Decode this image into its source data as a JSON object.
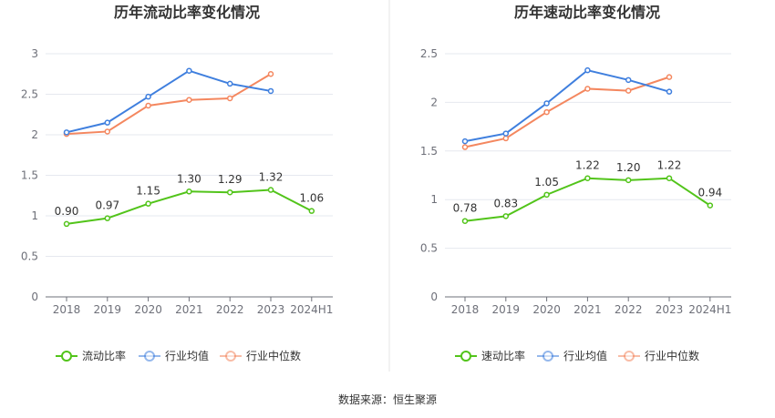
{
  "colors": {
    "green": "#52c41a",
    "blue": "#3f7fde",
    "orange": "#f4875f",
    "grid": "#e6e8ef",
    "axis": "#6e7079",
    "divider": "#e5e5e5"
  },
  "source_text": "数据来源：恒生聚源",
  "chart_data": [
    {
      "type": "line",
      "title": "历年流动比率变化情况",
      "categories": [
        "2018",
        "2019",
        "2020",
        "2021",
        "2022",
        "2023",
        "2024H1"
      ],
      "ylim": [
        0,
        3
      ],
      "yticks": [
        "0",
        "0.5",
        "1",
        "1.5",
        "2",
        "2.5",
        "3"
      ],
      "grid": true,
      "legend_position": "bottom",
      "series": [
        {
          "name": "流动比率",
          "color": "#52c41a",
          "values": [
            0.9,
            0.97,
            1.15,
            1.3,
            1.29,
            1.32,
            1.06
          ],
          "labels": [
            "0.90",
            "0.97",
            "1.15",
            "1.30",
            "1.29",
            "1.32",
            "1.06"
          ]
        },
        {
          "name": "行业均值",
          "color": "#3f7fde",
          "values": [
            2.03,
            2.15,
            2.47,
            2.79,
            2.63,
            2.54,
            null
          ]
        },
        {
          "name": "行业中位数",
          "color": "#f4875f",
          "values": [
            2.01,
            2.04,
            2.36,
            2.43,
            2.45,
            2.75,
            null
          ]
        }
      ]
    },
    {
      "type": "line",
      "title": "历年速动比率变化情况",
      "categories": [
        "2018",
        "2019",
        "2020",
        "2021",
        "2022",
        "2023",
        "2024H1"
      ],
      "ylim": [
        0,
        2.5
      ],
      "yticks": [
        "0",
        "0.5",
        "1",
        "1.5",
        "2",
        "2.5"
      ],
      "grid": true,
      "legend_position": "bottom",
      "series": [
        {
          "name": "速动比率",
          "color": "#52c41a",
          "values": [
            0.78,
            0.83,
            1.05,
            1.22,
            1.2,
            1.22,
            0.94
          ],
          "labels": [
            "0.78",
            "0.83",
            "1.05",
            "1.22",
            "1.20",
            "1.22",
            "0.94"
          ]
        },
        {
          "name": "行业均值",
          "color": "#3f7fde",
          "values": [
            1.6,
            1.68,
            1.99,
            2.33,
            2.23,
            2.11,
            null
          ]
        },
        {
          "name": "行业中位数",
          "color": "#f4875f",
          "values": [
            1.54,
            1.63,
            1.9,
            2.14,
            2.12,
            2.26,
            null
          ]
        }
      ]
    }
  ]
}
